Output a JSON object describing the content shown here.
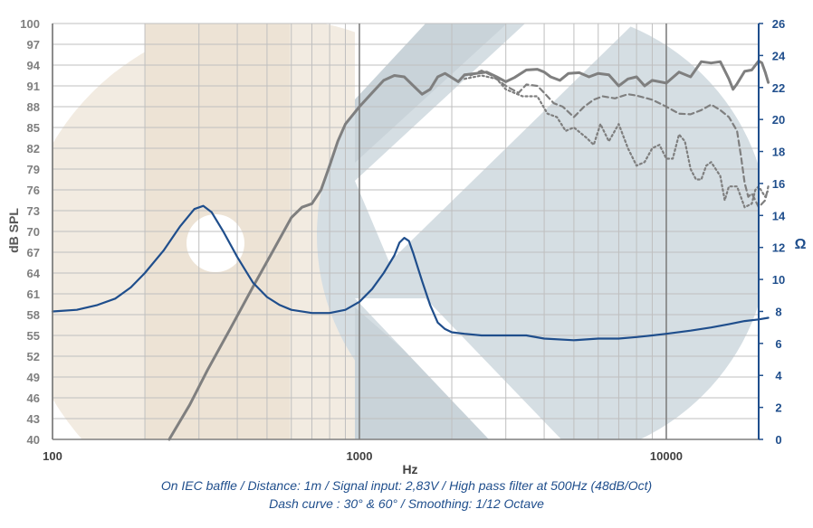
{
  "chart_data": {
    "type": "line",
    "title": "",
    "xlabel": "Hz",
    "ylabel_left": "dB SPL",
    "ylabel_right": "Ω",
    "x_scale": "log",
    "xlim": [
      100,
      20000
    ],
    "ylim_left": [
      40,
      100
    ],
    "ylim_right": [
      0,
      26
    ],
    "x_tick_labels": [
      {
        "value": 100,
        "label": "100"
      },
      {
        "value": 1000,
        "label": "1000"
      },
      {
        "value": 10000,
        "label": "10000"
      }
    ],
    "left_ticks": [
      40,
      43,
      46,
      49,
      52,
      55,
      58,
      61,
      64,
      67,
      70,
      73,
      76,
      79,
      82,
      85,
      88,
      91,
      94,
      97,
      100
    ],
    "right_ticks": [
      0,
      2,
      4,
      6,
      8,
      10,
      12,
      14,
      16,
      18,
      20,
      22,
      24,
      26
    ],
    "grid": true,
    "colors": {
      "spl": "#7f7f7f",
      "impedance": "#1f4e8c",
      "grid": "#bfbfbf",
      "axis_right": "#1f4e8c"
    },
    "series": [
      {
        "name": "SPL on-axis",
        "axis": "left",
        "style": "solid",
        "points": [
          [
            240,
            40
          ],
          [
            280,
            45
          ],
          [
            320,
            50
          ],
          [
            380,
            56
          ],
          [
            450,
            62
          ],
          [
            520,
            67
          ],
          [
            600,
            72
          ],
          [
            650,
            73.5
          ],
          [
            700,
            74
          ],
          [
            750,
            76
          ],
          [
            800,
            79.5
          ],
          [
            850,
            83
          ],
          [
            900,
            85.5
          ],
          [
            1000,
            88
          ],
          [
            1100,
            90
          ],
          [
            1200,
            91.8
          ],
          [
            1300,
            92.5
          ],
          [
            1400,
            92.3
          ],
          [
            1500,
            91
          ],
          [
            1600,
            89.8
          ],
          [
            1700,
            90.5
          ],
          [
            1800,
            92.3
          ],
          [
            1900,
            92.8
          ],
          [
            2000,
            92.2
          ],
          [
            2100,
            91.6
          ],
          [
            2200,
            92.6
          ],
          [
            2400,
            92.8
          ],
          [
            2600,
            93
          ],
          [
            2800,
            92.3
          ],
          [
            3000,
            91.6
          ],
          [
            3200,
            92.2
          ],
          [
            3500,
            93.3
          ],
          [
            3800,
            93.4
          ],
          [
            4000,
            93
          ],
          [
            4200,
            92.3
          ],
          [
            4500,
            91.8
          ],
          [
            4800,
            92.8
          ],
          [
            5200,
            92.9
          ],
          [
            5600,
            92.3
          ],
          [
            6000,
            92.8
          ],
          [
            6500,
            92.6
          ],
          [
            7000,
            91
          ],
          [
            7500,
            92
          ],
          [
            8000,
            92.3
          ],
          [
            8500,
            91
          ],
          [
            9000,
            91.8
          ],
          [
            10000,
            91.4
          ],
          [
            11000,
            93
          ],
          [
            12000,
            92.3
          ],
          [
            13000,
            94.5
          ],
          [
            14000,
            94.3
          ],
          [
            15000,
            94.5
          ],
          [
            16000,
            92
          ],
          [
            16500,
            90.5
          ],
          [
            17000,
            91.3
          ],
          [
            18000,
            93.1
          ],
          [
            19000,
            93.3
          ],
          [
            20000,
            94.6
          ],
          [
            20500,
            94.3
          ],
          [
            21000,
            93
          ],
          [
            21500,
            91.5
          ]
        ]
      },
      {
        "name": "SPL 30°",
        "axis": "left",
        "style": "dashed",
        "points": [
          [
            2300,
            92.5
          ],
          [
            2500,
            93.2
          ],
          [
            2700,
            92.5
          ],
          [
            3000,
            91
          ],
          [
            3300,
            90
          ],
          [
            3500,
            91.2
          ],
          [
            3800,
            91
          ],
          [
            4000,
            90
          ],
          [
            4300,
            88.5
          ],
          [
            4600,
            88
          ],
          [
            5000,
            86.5
          ],
          [
            5400,
            88
          ],
          [
            5800,
            89
          ],
          [
            6200,
            89.5
          ],
          [
            6800,
            89.2
          ],
          [
            7500,
            89.8
          ],
          [
            8000,
            89.6
          ],
          [
            9000,
            89
          ],
          [
            10000,
            88
          ],
          [
            11000,
            87
          ],
          [
            12000,
            86.9
          ],
          [
            13000,
            87.5
          ],
          [
            14000,
            88.3
          ],
          [
            15000,
            87.5
          ],
          [
            16000,
            86.5
          ],
          [
            17000,
            84.5
          ],
          [
            17500,
            81
          ],
          [
            18000,
            77
          ],
          [
            18500,
            75
          ],
          [
            19000,
            75.5
          ],
          [
            20000,
            73.5
          ],
          [
            21000,
            74.5
          ],
          [
            21500,
            76.5
          ]
        ]
      },
      {
        "name": "SPL 60°",
        "axis": "left",
        "style": "dotted",
        "points": [
          [
            2200,
            92
          ],
          [
            2500,
            92.5
          ],
          [
            2800,
            92
          ],
          [
            3000,
            90.5
          ],
          [
            3400,
            89.5
          ],
          [
            3800,
            89.5
          ],
          [
            4100,
            87
          ],
          [
            4400,
            86.5
          ],
          [
            4700,
            84.5
          ],
          [
            5000,
            85
          ],
          [
            5500,
            83.5
          ],
          [
            5800,
            82.5
          ],
          [
            6100,
            85.5
          ],
          [
            6500,
            83
          ],
          [
            7000,
            85.5
          ],
          [
            7500,
            82
          ],
          [
            8000,
            79.5
          ],
          [
            8500,
            80
          ],
          [
            9000,
            82
          ],
          [
            9500,
            82.5
          ],
          [
            10000,
            80.5
          ],
          [
            10500,
            80.5
          ],
          [
            11000,
            84
          ],
          [
            11500,
            83
          ],
          [
            12000,
            79
          ],
          [
            12500,
            77.5
          ],
          [
            13000,
            77.5
          ],
          [
            13500,
            79.5
          ],
          [
            14000,
            80
          ],
          [
            15000,
            78
          ],
          [
            15500,
            74.5
          ],
          [
            16000,
            76.5
          ],
          [
            17000,
            76.5
          ],
          [
            17500,
            75
          ],
          [
            18000,
            73.5
          ],
          [
            19000,
            74
          ],
          [
            19500,
            76
          ],
          [
            20000,
            76.5
          ],
          [
            21000,
            75
          ],
          [
            21500,
            76
          ]
        ]
      },
      {
        "name": "Impedance",
        "axis": "right",
        "style": "solid",
        "points": [
          [
            100,
            8
          ],
          [
            120,
            8.1
          ],
          [
            140,
            8.4
          ],
          [
            160,
            8.8
          ],
          [
            180,
            9.5
          ],
          [
            200,
            10.4
          ],
          [
            230,
            11.8
          ],
          [
            260,
            13.3
          ],
          [
            290,
            14.4
          ],
          [
            310,
            14.6
          ],
          [
            330,
            14.2
          ],
          [
            360,
            13
          ],
          [
            400,
            11.4
          ],
          [
            450,
            9.8
          ],
          [
            500,
            8.9
          ],
          [
            550,
            8.4
          ],
          [
            600,
            8.1
          ],
          [
            700,
            7.9
          ],
          [
            800,
            7.9
          ],
          [
            900,
            8.1
          ],
          [
            1000,
            8.6
          ],
          [
            1100,
            9.4
          ],
          [
            1200,
            10.4
          ],
          [
            1300,
            11.5
          ],
          [
            1350,
            12.3
          ],
          [
            1400,
            12.6
          ],
          [
            1450,
            12.4
          ],
          [
            1500,
            11.6
          ],
          [
            1600,
            9.9
          ],
          [
            1700,
            8.4
          ],
          [
            1800,
            7.3
          ],
          [
            1900,
            6.9
          ],
          [
            2000,
            6.7
          ],
          [
            2200,
            6.6
          ],
          [
            2500,
            6.5
          ],
          [
            3000,
            6.5
          ],
          [
            3500,
            6.5
          ],
          [
            4000,
            6.3
          ],
          [
            5000,
            6.2
          ],
          [
            6000,
            6.3
          ],
          [
            7000,
            6.3
          ],
          [
            8000,
            6.4
          ],
          [
            9000,
            6.5
          ],
          [
            10000,
            6.6
          ],
          [
            12000,
            6.8
          ],
          [
            14000,
            7.0
          ],
          [
            16000,
            7.2
          ],
          [
            18000,
            7.4
          ],
          [
            20000,
            7.5
          ],
          [
            21500,
            7.6
          ]
        ]
      }
    ],
    "caption_line1": "On IEC baffle / Distance: 1m / Signal input: 2,83V / High pass filter at 500Hz (48dB/Oct)",
    "caption_line2": "Dash curve : 30° & 60° / Smoothing: 1/12 Octave"
  }
}
